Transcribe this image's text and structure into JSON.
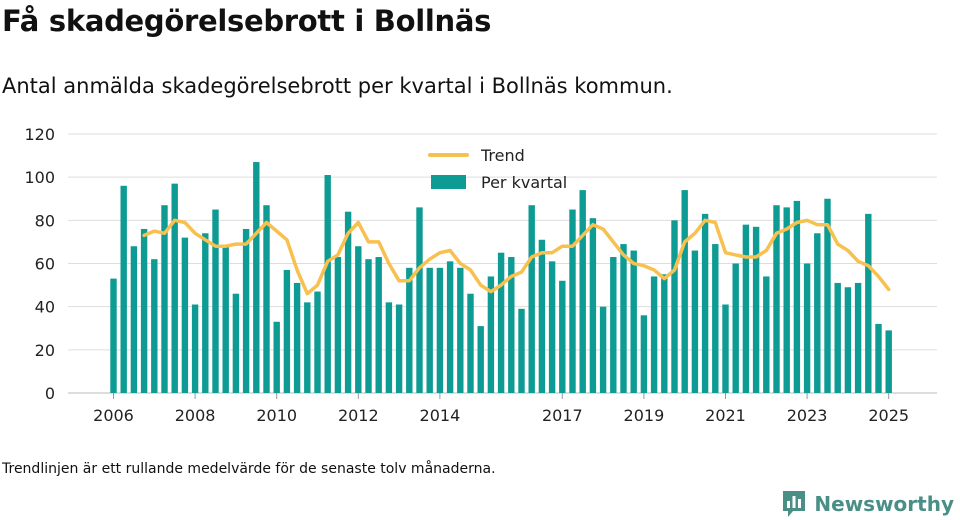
{
  "header": {
    "title": "Få skadegörelsebrott i Bollnäs",
    "subtitle": "Antal anmälda skadegörelsebrott per kvartal i Bollnäs kommun."
  },
  "footer": {
    "note": "Trendlinjen är ett rullande medelvärde för de senaste tolv månaderna.",
    "brand": "Newsworthy",
    "brand_icon": "bar-chart-speech-bubble-icon"
  },
  "colors": {
    "bars": "#0e9b93",
    "trend": "#f7c04f",
    "grid": "#dddddd",
    "brand": "#4a8f86"
  },
  "chart_data": {
    "type": "bar",
    "ylim": [
      0,
      120
    ],
    "yticks": [
      0,
      20,
      40,
      60,
      80,
      100,
      120
    ],
    "x_tick_labels": [
      "2006",
      "2008",
      "2010",
      "2012",
      "2014",
      "2017",
      "2019",
      "2021",
      "2023",
      "2025"
    ],
    "grid": "horizontal",
    "legend": {
      "position": "top-center"
    },
    "categories": [
      "2006 Q1",
      "2006 Q2",
      "2006 Q3",
      "2006 Q4",
      "2007 Q1",
      "2007 Q2",
      "2007 Q3",
      "2007 Q4",
      "2008 Q1",
      "2008 Q2",
      "2008 Q3",
      "2008 Q4",
      "2009 Q1",
      "2009 Q2",
      "2009 Q3",
      "2009 Q4",
      "2010 Q1",
      "2010 Q2",
      "2010 Q3",
      "2010 Q4",
      "2011 Q1",
      "2011 Q2",
      "2011 Q3",
      "2011 Q4",
      "2012 Q1",
      "2012 Q2",
      "2012 Q3",
      "2012 Q4",
      "2013 Q1",
      "2013 Q2",
      "2013 Q3",
      "2013 Q4",
      "2014 Q1",
      "2014 Q2",
      "2014 Q3",
      "2014 Q4",
      "2015 Q1",
      "2015 Q2",
      "2015 Q3",
      "2015 Q4",
      "2016 Q1",
      "2016 Q2",
      "2016 Q3",
      "2016 Q4",
      "2017 Q1",
      "2017 Q2",
      "2017 Q3",
      "2017 Q4",
      "2018 Q1",
      "2018 Q2",
      "2018 Q3",
      "2018 Q4",
      "2019 Q1",
      "2019 Q2",
      "2019 Q3",
      "2019 Q4",
      "2020 Q1",
      "2020 Q2",
      "2020 Q3",
      "2020 Q4",
      "2021 Q1",
      "2021 Q2",
      "2021 Q3",
      "2021 Q4",
      "2022 Q1",
      "2022 Q2",
      "2022 Q3",
      "2022 Q4",
      "2023 Q1",
      "2023 Q2",
      "2023 Q3",
      "2023 Q4",
      "2024 Q1",
      "2024 Q2",
      "2024 Q3",
      "2024 Q4",
      "2025 Q1"
    ],
    "series": [
      {
        "name": "Per kvartal",
        "kind": "bar",
        "values": [
          53,
          96,
          68,
          76,
          62,
          87,
          97,
          72,
          41,
          74,
          85,
          68,
          46,
          76,
          107,
          87,
          33,
          57,
          51,
          42,
          47,
          101,
          63,
          84,
          68,
          62,
          63,
          42,
          41,
          58,
          86,
          58,
          58,
          61,
          58,
          46,
          31,
          54,
          65,
          63,
          39,
          87,
          71,
          61,
          52,
          85,
          94,
          81,
          40,
          63,
          69,
          66,
          36,
          54,
          55,
          80,
          94,
          66,
          83,
          69,
          41,
          60,
          78,
          77,
          54,
          87,
          86,
          89,
          60,
          74,
          90,
          51,
          49,
          51,
          83,
          32,
          29
        ]
      },
      {
        "name": "Trend",
        "kind": "line",
        "values": [
          null,
          null,
          null,
          73,
          75,
          74,
          80,
          79,
          74,
          71,
          68,
          68,
          69,
          69,
          74,
          79,
          75,
          71,
          57,
          46,
          50,
          61,
          64,
          74,
          79,
          70,
          70,
          60,
          52,
          52,
          58,
          62,
          65,
          66,
          60,
          57,
          50,
          47,
          50,
          54,
          56,
          63,
          65,
          65,
          68,
          68,
          73,
          78,
          76,
          70,
          64,
          60,
          59,
          57,
          53,
          57,
          70,
          74,
          80,
          79,
          65,
          64,
          63,
          63,
          66,
          74,
          76,
          79,
          80,
          78,
          78,
          69,
          66,
          61,
          59,
          54,
          48
        ]
      }
    ]
  }
}
